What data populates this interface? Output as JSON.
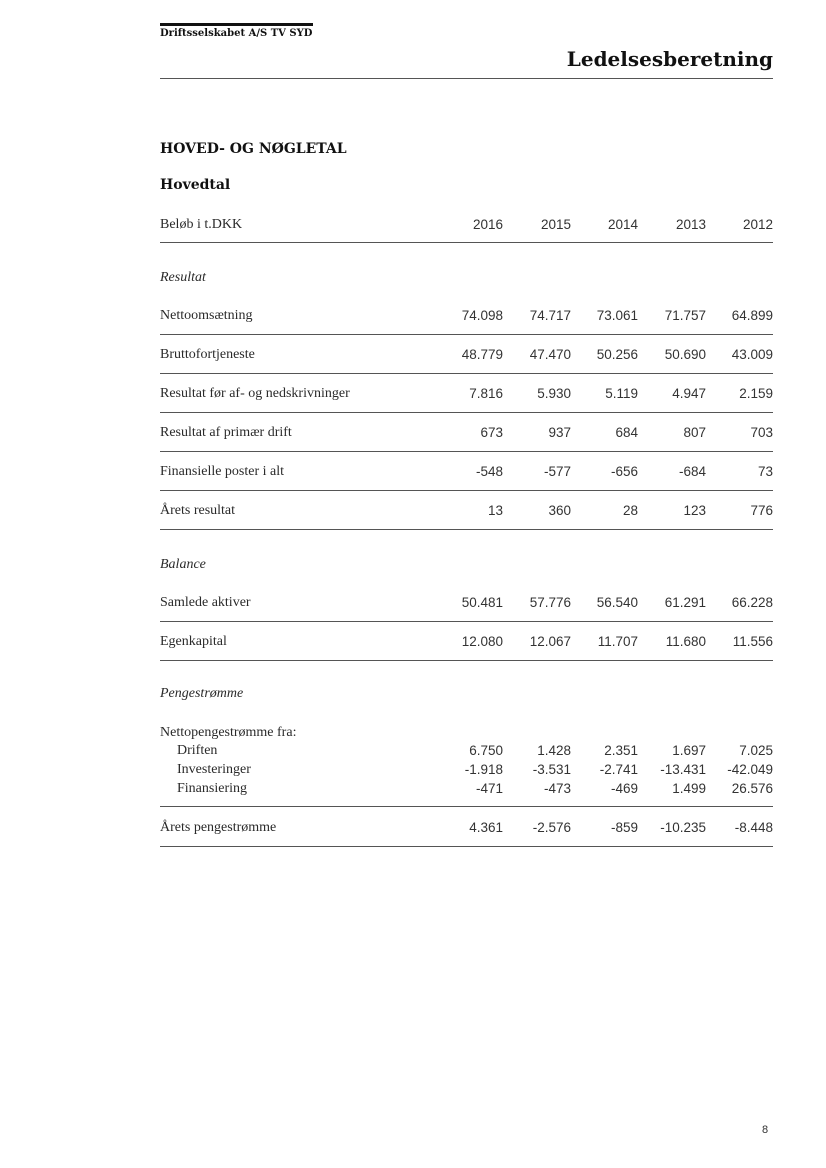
{
  "header": {
    "company": "Driftsselskabet A/S TV SYD",
    "title": "Ledelsesberetning"
  },
  "section_title": "HOVED- OG NØGLETAL",
  "subsection_title": "Hovedtal",
  "table": {
    "unit_label": "Beløb i t.DKK",
    "years": [
      "2016",
      "2015",
      "2014",
      "2013",
      "2012"
    ],
    "rows": [
      {
        "type": "section",
        "label": "Resultat"
      },
      {
        "type": "data",
        "label": "Nettoomsætning",
        "values": [
          "74.098",
          "74.717",
          "73.061",
          "71.757",
          "64.899"
        ]
      },
      {
        "type": "data",
        "label": "Bruttofortjeneste",
        "values": [
          "48.779",
          "47.470",
          "50.256",
          "50.690",
          "43.009"
        ]
      },
      {
        "type": "data",
        "label": "Resultat før af- og nedskrivninger",
        "values": [
          "7.816",
          "5.930",
          "5.119",
          "4.947",
          "2.159"
        ]
      },
      {
        "type": "data",
        "label": "Resultat af primær drift",
        "values": [
          "673",
          "937",
          "684",
          "807",
          "703"
        ]
      },
      {
        "type": "data",
        "label": "Finansielle poster i alt",
        "values": [
          "-548",
          "-577",
          "-656",
          "-684",
          "73"
        ]
      },
      {
        "type": "data",
        "label": "Årets resultat",
        "values": [
          "13",
          "360",
          "28",
          "123",
          "776"
        ]
      },
      {
        "type": "section",
        "label": "Balance"
      },
      {
        "type": "data",
        "label": "Samlede aktiver",
        "values": [
          "50.481",
          "57.776",
          "56.540",
          "61.291",
          "66.228"
        ]
      },
      {
        "type": "data",
        "label": "Egenkapital",
        "values": [
          "12.080",
          "12.067",
          "11.707",
          "11.680",
          "11.556"
        ]
      },
      {
        "type": "section",
        "label": "Pengestrømme"
      },
      {
        "type": "group",
        "label": "Nettopengestrømme fra:"
      },
      {
        "type": "sub",
        "label": "Driften",
        "values": [
          "6.750",
          "1.428",
          "2.351",
          "1.697",
          "7.025"
        ]
      },
      {
        "type": "sub",
        "label": "Investeringer",
        "values": [
          "-1.918",
          "-3.531",
          "-2.741",
          "-13.431",
          "-42.049"
        ]
      },
      {
        "type": "sub",
        "label": "Finansiering",
        "values": [
          "-471",
          "-473",
          "-469",
          "1.499",
          "26.576"
        ]
      },
      {
        "type": "data",
        "label": "Årets pengestrømme",
        "values": [
          "4.361",
          "-2.576",
          "-859",
          "-10.235",
          "-8.448"
        ]
      }
    ]
  },
  "page_number": "8"
}
